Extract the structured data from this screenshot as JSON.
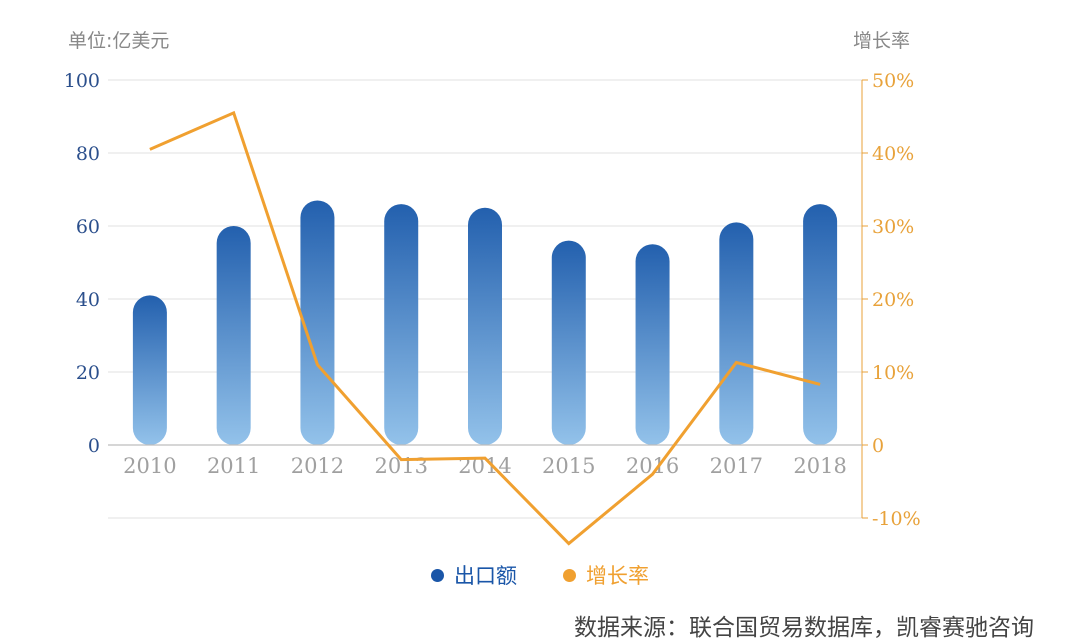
{
  "header": {
    "left_unit": "单位:亿美元",
    "right_unit": "增长率"
  },
  "legend": [
    {
      "name": "出口额",
      "color": "#1a56a8"
    },
    {
      "name": "增长率",
      "color": "#f0a030"
    }
  ],
  "source": "数据来源：联合国贸易数据库，凯睿赛驰咨询",
  "colors": {
    "bar_top": "#2360ae",
    "bar_bottom": "#93c2ea",
    "line": "#f0a030",
    "left_axis_text": "#2b4f8c",
    "right_axis_text": "#e8a23a",
    "x_tick_text": "#a0a0a0",
    "grid": "#e2e2e2"
  },
  "chart_data": {
    "type": "bar",
    "categories": [
      "2010",
      "2011",
      "2012",
      "2013",
      "2014",
      "2015",
      "2016",
      "2017",
      "2018"
    ],
    "series": [
      {
        "name": "出口额",
        "type": "bar",
        "axis": "left",
        "values": [
          41,
          60,
          67,
          66,
          65,
          56,
          55,
          61,
          66
        ]
      },
      {
        "name": "增长率",
        "type": "line",
        "axis": "right",
        "values": [
          40.5,
          45.5,
          11,
          -2,
          -1.8,
          -13.5,
          -4,
          11.3,
          8.3
        ]
      }
    ],
    "y_left": {
      "min": -20,
      "max": 100,
      "ticks": [
        0,
        20,
        40,
        60,
        80,
        100
      ],
      "tick_labels": [
        "0",
        "20",
        "40",
        "60",
        "80",
        "100"
      ]
    },
    "y_right": {
      "min": -10,
      "max": 50,
      "ticks": [
        -10,
        0,
        10,
        20,
        30,
        40,
        50
      ],
      "tick_labels": [
        "-10%",
        "0",
        "10%",
        "20%",
        "30%",
        "40%",
        "50%"
      ]
    },
    "grid": true,
    "legend_position": "bottom-center"
  }
}
